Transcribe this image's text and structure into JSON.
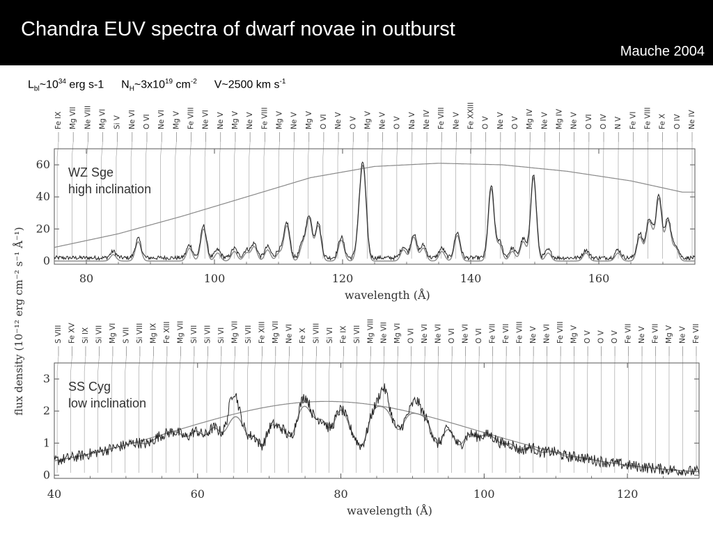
{
  "header": {
    "title": "Chandra EUV spectra of dwarf novae in outburst",
    "author_year": "Mauche 2004"
  },
  "params": {
    "L_sym": "L",
    "L_sub": "bl",
    "L_approx": "~10",
    "L_exp": "34",
    "L_unit": "erg s-1",
    "N_sym": "N",
    "N_sub": "H",
    "N_approx": "~3x10",
    "N_exp": "19",
    "N_unit": "cm",
    "N_unit_exp": "-2",
    "V_text": "V~2500 km s",
    "V_exp": "-1"
  },
  "colors": {
    "title_bar": "#000000",
    "title_text": "#ffffff",
    "data": "#222222",
    "model": "#888888"
  },
  "shared_ylabel": "flux density (10⁻¹² erg cm⁻² s⁻¹ Å⁻¹)",
  "chart_data": [
    {
      "type": "line",
      "label_line1": "WZ Sge",
      "label_line2": "high inclination",
      "xlabel": "wavelength (Å)",
      "xlim": [
        75,
        175
      ],
      "ylim": [
        -2,
        70
      ],
      "x_ticks": [
        80,
        100,
        120,
        140,
        160
      ],
      "y_ticks": [
        0,
        20,
        40,
        60
      ],
      "continuum": [
        [
          75,
          8.5
        ],
        [
          85,
          17
        ],
        [
          95,
          28
        ],
        [
          105,
          40
        ],
        [
          115,
          52
        ],
        [
          125,
          59
        ],
        [
          135,
          61
        ],
        [
          145,
          60
        ],
        [
          155,
          56
        ],
        [
          165,
          50
        ],
        [
          173,
          43
        ]
      ],
      "lines": [
        {
          "x": 84.2,
          "h": 4
        },
        {
          "x": 88.1,
          "h": 12
        },
        {
          "x": 96.1,
          "h": 8
        },
        {
          "x": 98.3,
          "h": 20
        },
        {
          "x": 100.5,
          "h": 5
        },
        {
          "x": 103.1,
          "h": 6
        },
        {
          "x": 105.0,
          "h": 5
        },
        {
          "x": 106.2,
          "h": 9
        },
        {
          "x": 108.3,
          "h": 7
        },
        {
          "x": 110.1,
          "h": 5
        },
        {
          "x": 111.3,
          "h": 22
        },
        {
          "x": 113.8,
          "h": 10
        },
        {
          "x": 114.8,
          "h": 26
        },
        {
          "x": 116.2,
          "h": 22
        },
        {
          "x": 119.8,
          "h": 13
        },
        {
          "x": 122.7,
          "h": 24
        },
        {
          "x": 123.3,
          "h": 48
        },
        {
          "x": 129.5,
          "h": 7
        },
        {
          "x": 131.1,
          "h": 15
        },
        {
          "x": 132.6,
          "h": 8
        },
        {
          "x": 135.5,
          "h": 6
        },
        {
          "x": 137.9,
          "h": 16
        },
        {
          "x": 143.2,
          "h": 45
        },
        {
          "x": 144.5,
          "h": 10
        },
        {
          "x": 146.5,
          "h": 6
        },
        {
          "x": 148.2,
          "h": 12
        },
        {
          "x": 149.8,
          "h": 52
        },
        {
          "x": 152.1,
          "h": 5
        },
        {
          "x": 158.0,
          "h": 5
        },
        {
          "x": 163.0,
          "h": 5
        },
        {
          "x": 166.4,
          "h": 15
        },
        {
          "x": 167.8,
          "h": 22
        },
        {
          "x": 168.5,
          "h": 8
        },
        {
          "x": 169.4,
          "h": 38
        },
        {
          "x": 170.8,
          "h": 25
        },
        {
          "x": 172.0,
          "h": 8
        }
      ],
      "line_ids": [
        "Fe IX",
        "Mg VII",
        "Ne VIII",
        "Mg VI",
        "Si V",
        "Ne VI",
        "O VI",
        "Ne VI",
        "Mg V",
        "Fe VIII",
        "Ne VI",
        "Ne V",
        "Mg V",
        "Ne V",
        "Fe VIII",
        "Mg V",
        "Ne V",
        "Mg V",
        "O VI",
        "Ne V",
        "O V",
        "Mg V",
        "Ne V",
        "O V",
        "Na V",
        "Ne IV",
        "Fe VIII",
        "Ne V",
        "Fe XXIII",
        "O V",
        "Ne V",
        "O V",
        "Mg IV",
        "Ne V",
        "Mg IV",
        "Ne V",
        "O VI",
        "O IV",
        "N V",
        "Fe VI",
        "Fe VIII",
        "Fe X",
        "O IV",
        "Ne IV"
      ]
    },
    {
      "type": "line",
      "label_line1": "SS Cyg",
      "label_line2": "low inclination",
      "xlabel": "wavelength (Å)",
      "xlim": [
        40,
        130
      ],
      "ylim": [
        -0.1,
        3.5
      ],
      "x_ticks": [
        40,
        60,
        80,
        100,
        120
      ],
      "y_ticks": [
        0,
        1,
        2,
        3
      ],
      "continuum_center": 78,
      "continuum_peak": 2.3,
      "continuum_sigma": 21,
      "absorptions": [
        {
          "x": 53.0,
          "d": 0.3
        },
        {
          "x": 58.5,
          "d": 0.45
        },
        {
          "x": 61.0,
          "d": 0.55
        },
        {
          "x": 63.5,
          "d": 0.6
        },
        {
          "x": 67.1,
          "d": 0.8
        },
        {
          "x": 69.0,
          "d": 1.2
        },
        {
          "x": 71.2,
          "d": 0.6
        },
        {
          "x": 73.0,
          "d": 1.0
        },
        {
          "x": 76.5,
          "d": 0.5
        },
        {
          "x": 78.5,
          "d": 0.8
        },
        {
          "x": 81.5,
          "d": 0.7
        },
        {
          "x": 83.0,
          "d": 1.2
        },
        {
          "x": 88.0,
          "d": 0.7
        },
        {
          "x": 93.5,
          "d": 1.0
        },
        {
          "x": 96.5,
          "d": 0.9
        },
        {
          "x": 99.0,
          "d": 0.3
        },
        {
          "x": 102.5,
          "d": 0.35
        },
        {
          "x": 105.0,
          "d": 0.5
        },
        {
          "x": 108.0,
          "d": 0.3
        },
        {
          "x": 111.5,
          "d": 0.2
        }
      ],
      "emissions": [
        {
          "x": 65.0,
          "h": 0.8
        },
        {
          "x": 75.0,
          "h": 0.3
        },
        {
          "x": 86.0,
          "h": 0.6
        },
        {
          "x": 90.5,
          "h": 0.4
        }
      ],
      "line_ids": [
        "S VIII",
        "Fe XV",
        "Si IX",
        "Si VII",
        "Mg VI",
        "S VII",
        "Si VIII",
        "Mg IX",
        "Fe XIII",
        "Mg VII",
        "Si VII",
        "Si VII",
        "Si VI",
        "Mg VII",
        "Si VII",
        "Fe XIII",
        "Mg VII",
        "Ne VI",
        "Fe X",
        "Si VIII",
        "Si VI",
        "Fe IX",
        "Si VII",
        "Mg VIII",
        "Ne VII",
        "Mg VI",
        "O VI",
        "Ne VI",
        "Ne VI",
        "O VI",
        "Ne VI",
        "O VI",
        "Fe VII",
        "Fe VII",
        "Fe VIII",
        "Ne V",
        "Ne VI",
        "Fe VIII",
        "Mg V",
        "O V",
        "O V",
        "O V",
        "Fe VII",
        "Ne V",
        "Fe VII",
        "Mg V",
        "Ne V",
        "Fe VII"
      ]
    }
  ]
}
